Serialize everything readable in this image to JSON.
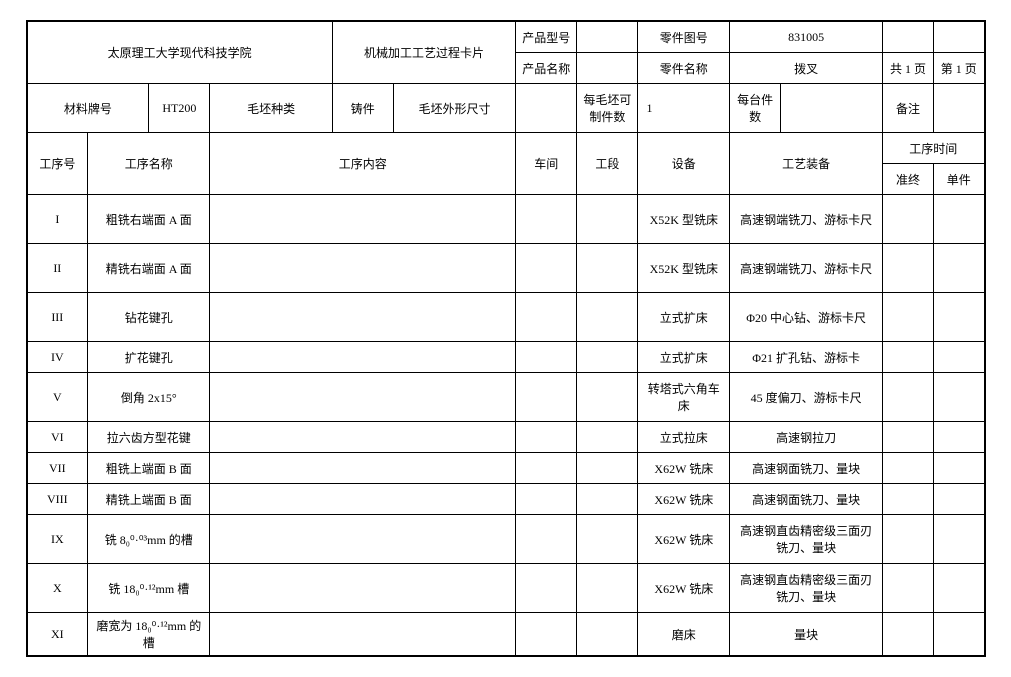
{
  "header": {
    "institution": "太原理工大学现代科技学院",
    "card_title": "机械加工工艺过程卡片",
    "product_model_label": "产品型号",
    "product_model_value": "",
    "part_drawing_no_label": "零件图号",
    "part_drawing_no_value": "831005",
    "product_name_label": "产品名称",
    "product_name_value": "",
    "part_name_label": "零件名称",
    "part_name_value": "拨叉",
    "sheet_total": "共 1 页",
    "sheet_current": "第 1 页"
  },
  "material": {
    "material_grade_label": "材料牌号",
    "material_grade_value": "HT200",
    "blank_type_label": "毛坯种类",
    "blank_type_value": "铸件",
    "blank_dim_label": "毛坯外形尺寸",
    "blank_dim_value": "",
    "parts_per_blank_label": "每毛坯可制件数",
    "parts_per_blank_value": "1",
    "parts_per_machine_label": "每台件数",
    "parts_per_machine_value": "",
    "remark_label": "备注",
    "remark_value": ""
  },
  "columns": {
    "seq": "工序号",
    "op_name": "工序名称",
    "op_content": "工序内容",
    "workshop": "车间",
    "section": "工段",
    "equipment": "设备",
    "tooling": "工艺装备",
    "op_time": "工序时间",
    "prep_end": "准终",
    "unit_piece": "单件"
  },
  "rows": [
    {
      "seq": "I",
      "name": "粗铣右端面 A 面",
      "content": "",
      "workshop": "",
      "section": "",
      "equipment": "X52K 型铣床",
      "tooling": "高速钢端铣刀、游标卡尺",
      "prep": "",
      "unit": ""
    },
    {
      "seq": "II",
      "name": "精铣右端面 A 面",
      "content": "",
      "workshop": "",
      "section": "",
      "equipment": "X52K 型铣床",
      "tooling": "高速钢端铣刀、游标卡尺",
      "prep": "",
      "unit": ""
    },
    {
      "seq": "III",
      "name": "钻花键孔",
      "content": "",
      "workshop": "",
      "section": "",
      "equipment": "立式扩床",
      "tooling": "Φ20 中心钻、游标卡尺",
      "prep": "",
      "unit": ""
    },
    {
      "seq": "IV",
      "name": "扩花键孔",
      "content": "",
      "workshop": "",
      "section": "",
      "equipment": "立式扩床",
      "tooling": "Φ21 扩孔钻、游标卡",
      "prep": "",
      "unit": ""
    },
    {
      "seq": "V",
      "name": "倒角 2x15°",
      "content": "",
      "workshop": "",
      "section": "",
      "equipment": "转塔式六角车床",
      "tooling": "45 度偏刀、游标卡尺",
      "prep": "",
      "unit": ""
    },
    {
      "seq": "VI",
      "name": "拉六齿方型花键",
      "content": "",
      "workshop": "",
      "section": "",
      "equipment": "立式拉床",
      "tooling": "高速钢拉刀",
      "prep": "",
      "unit": ""
    },
    {
      "seq": "VII",
      "name": "粗铣上端面 B 面",
      "content": "",
      "workshop": "",
      "section": "",
      "equipment": "X62W 铣床",
      "tooling": "高速钢面铣刀、量块",
      "prep": "",
      "unit": ""
    },
    {
      "seq": "VIII",
      "name": "精铣上端面 B 面",
      "content": "",
      "workshop": "",
      "section": "",
      "equipment": "X62W 铣床",
      "tooling": "高速钢面铣刀、量块",
      "prep": "",
      "unit": ""
    },
    {
      "seq": "IX",
      "name": "铣 8₀⁰·⁰³mm 的槽",
      "content": "",
      "workshop": "",
      "section": "",
      "equipment": "X62W 铣床",
      "tooling": "高速钢直齿精密级三面刃铣刀、量块",
      "prep": "",
      "unit": ""
    },
    {
      "seq": "X",
      "name": "铣 18₀⁰·¹²mm 槽",
      "content": "",
      "workshop": "",
      "section": "",
      "equipment": "X62W 铣床",
      "tooling": "高速钢直齿精密级三面刃铣刀、量块",
      "prep": "",
      "unit": ""
    },
    {
      "seq": "XI",
      "name": "磨宽为 18₀⁰·¹²mm 的槽",
      "content": "",
      "workshop": "",
      "section": "",
      "equipment": "磨床",
      "tooling": "量块",
      "prep": "",
      "unit": ""
    }
  ]
}
